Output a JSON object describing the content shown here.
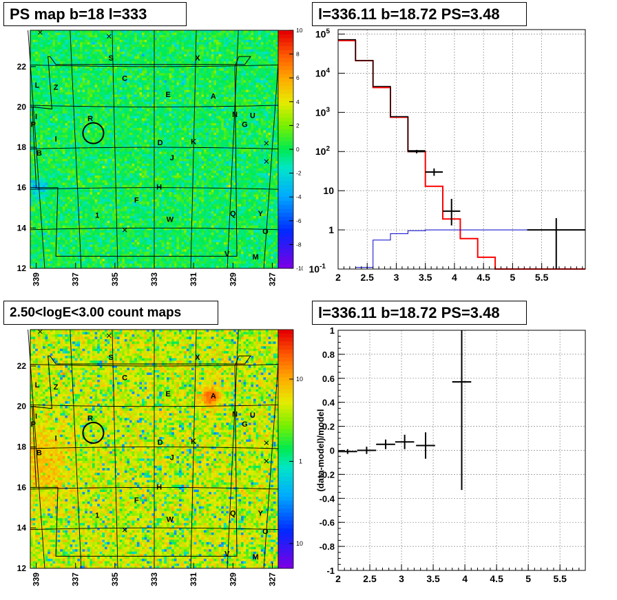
{
  "panels": {
    "ps_map": {
      "title": "PS map b=18 l=333",
      "xticks": [
        "339",
        "337",
        "335",
        "333",
        "331",
        "329",
        "327"
      ],
      "yticks": [
        "12",
        "14",
        "16",
        "18",
        "20",
        "22"
      ],
      "colorbar_ticks": [
        "10",
        "8",
        "6",
        "4",
        "2",
        "0",
        "-2",
        "-4",
        "-6",
        "-8",
        "-10"
      ]
    },
    "count_map": {
      "title": "2.50<logE<3.00 count maps",
      "xticks": [
        "339",
        "337",
        "335",
        "333",
        "331",
        "329",
        "327"
      ],
      "yticks": [
        "12",
        "14",
        "16",
        "18",
        "20",
        "22"
      ],
      "colorbar_ticks": [
        "10",
        "1",
        "10"
      ],
      "colorbar_tick_exp": "-1"
    },
    "spectrum": {
      "title": "l=336.11 b=18.72 PS=3.48"
    },
    "residual": {
      "title": "l=336.11 b=18.72 PS=3.48"
    }
  },
  "source_labels": [
    {
      "t": "S",
      "l": 335.2,
      "b": 22.3
    },
    {
      "t": "X",
      "l": 330.8,
      "b": 22.3
    },
    {
      "t": "C",
      "l": 334.5,
      "b": 21.3
    },
    {
      "t": "L",
      "l": 338.95,
      "b": 20.95
    },
    {
      "t": "Z",
      "l": 338.0,
      "b": 20.85
    },
    {
      "t": "E",
      "l": 332.3,
      "b": 20.5
    },
    {
      "t": "A",
      "l": 330.0,
      "b": 20.4
    },
    {
      "t": "N",
      "l": 328.9,
      "b": 19.5
    },
    {
      "t": "U",
      "l": 328.0,
      "b": 19.45
    },
    {
      "t": "I",
      "l": 339.0,
      "b": 19.4
    },
    {
      "t": "G",
      "l": 328.4,
      "b": 19.0
    },
    {
      "t": "P",
      "l": 339.15,
      "b": 19.0
    },
    {
      "t": "R",
      "l": 336.25,
      "b": 19.3
    },
    {
      "t": "I",
      "l": 338.0,
      "b": 18.3
    },
    {
      "t": "D",
      "l": 332.7,
      "b": 18.1
    },
    {
      "t": "K",
      "l": 331.0,
      "b": 18.15
    },
    {
      "t": "B",
      "l": 338.85,
      "b": 17.6
    },
    {
      "t": "J",
      "l": 332.1,
      "b": 17.35
    },
    {
      "t": "H",
      "l": 332.75,
      "b": 15.9
    },
    {
      "t": "F",
      "l": 333.9,
      "b": 15.25
    },
    {
      "t": "1",
      "l": 335.9,
      "b": 14.5
    },
    {
      "t": "W",
      "l": 332.2,
      "b": 14.3
    },
    {
      "t": "Q",
      "l": 329.0,
      "b": 14.6
    },
    {
      "t": "Y",
      "l": 327.6,
      "b": 14.6
    },
    {
      "t": "O",
      "l": 327.35,
      "b": 13.7
    },
    {
      "t": "V",
      "l": 329.3,
      "b": 12.6
    },
    {
      "t": "M",
      "l": 327.85,
      "b": 12.45
    }
  ],
  "chart_data": [
    {
      "type": "heatmap",
      "title": "PS map b=18 l=333",
      "xlabel": "",
      "ylabel": "",
      "xlim": [
        339.3,
        326.7
      ],
      "ylim": [
        12,
        23.8
      ],
      "zlim": [
        -10,
        10
      ],
      "palette": "rainbow",
      "features": [
        {
          "kind": "deficit",
          "l": 338.85,
          "b": 16.0,
          "value": -3.5
        },
        {
          "kind": "marked_circle",
          "l": 336.1,
          "b": 18.7
        }
      ]
    },
    {
      "type": "heatmap",
      "title": "2.50<logE<3.00 count maps",
      "xlabel": "",
      "ylabel": "",
      "xlim": [
        339.3,
        326.7
      ],
      "ylim": [
        12,
        23.8
      ],
      "zscale": "log",
      "zlim": [
        0.05,
        40
      ],
      "palette": "rainbow",
      "features": [
        {
          "kind": "excess",
          "l": 330.1,
          "b": 20.5,
          "value": 15
        },
        {
          "kind": "excess_region",
          "l": 338.9,
          "b": 17.3,
          "value": 10
        },
        {
          "kind": "marked_circle",
          "l": 336.1,
          "b": 18.7
        }
      ]
    },
    {
      "type": "line",
      "title": "l=336.11 b=18.72 PS=3.48",
      "xlabel": "",
      "ylabel": "",
      "xlim": [
        2,
        6.25
      ],
      "ylim": [
        0.1,
        130000
      ],
      "yscale": "log",
      "grid": true,
      "xticks": [
        "2",
        "2.5",
        "3",
        "3.5",
        "4",
        "4.5",
        "5",
        "5.5"
      ],
      "yticks": [
        {
          "v": 100000,
          "m": "10",
          "e": "5"
        },
        {
          "v": 10000,
          "m": "10",
          "e": "4"
        },
        {
          "v": 1000,
          "m": "10",
          "e": "3"
        },
        {
          "v": 100,
          "m": "10",
          "e": "2"
        },
        {
          "v": 10,
          "m": "10",
          "e": ""
        },
        {
          "v": 1,
          "m": "1",
          "e": ""
        },
        {
          "v": 0.1,
          "m": "10",
          "e": "-1"
        }
      ],
      "series": [
        {
          "style": "step",
          "color": "#ff0000",
          "edges": [
            2,
            2.3,
            2.6,
            2.9,
            3.2,
            3.5,
            3.8,
            4.1,
            4.4,
            4.7,
            5,
            5.3,
            5.6,
            5.9,
            6.25
          ],
          "values": [
            68000,
            21000,
            4300,
            750,
            100,
            13,
            1.9,
            0.6,
            0.2,
            0.1,
            0.1,
            0.1,
            0.1,
            0.1
          ]
        },
        {
          "style": "step",
          "color": "#000000",
          "edges": [
            2,
            2.3,
            2.6,
            2.9,
            3.2,
            3.5,
            3.8,
            4.1,
            4.4,
            4.7,
            5,
            5.3,
            5.6,
            5.9,
            6.25
          ],
          "values": [
            72000,
            21000,
            4600,
            780,
            105,
            null,
            null,
            null,
            null,
            null,
            null,
            null,
            null,
            null
          ]
        },
        {
          "style": "step",
          "color": "#0000cc",
          "edges": [
            2.3,
            2.6,
            2.9,
            3.2,
            3.5,
            3.8,
            4.1,
            4.4,
            4.7,
            5,
            5.3,
            5.6,
            5.9,
            6.25
          ],
          "values": [
            0.11,
            0.55,
            0.8,
            0.95,
            1,
            1,
            1,
            1,
            1,
            1,
            1,
            1,
            1
          ]
        },
        {
          "style": "errorbar",
          "color": "#000000",
          "points": [
            {
              "x": 3.35,
              "y": 100,
              "xerr": 0.15,
              "ylo": 90,
              "yhi": 110
            },
            {
              "x": 3.65,
              "y": 30,
              "xerr": 0.15,
              "ylo": 24,
              "yhi": 37
            },
            {
              "x": 3.95,
              "y": 3,
              "xerr": 0.15,
              "ylo": 1.3,
              "yhi": 6.2
            },
            {
              "x": 5.75,
              "y": 1,
              "xerr": 0.5,
              "ylo": 0.1,
              "yhi": 2
            }
          ]
        }
      ]
    },
    {
      "type": "scatter",
      "title": "l=336.11 b=18.72 PS=3.48",
      "xlabel": "",
      "ylabel": "(data-model)/model",
      "xlim": [
        2,
        5.9
      ],
      "ylim": [
        -1,
        1
      ],
      "grid": true,
      "xticks": [
        2,
        2.5,
        3,
        3.5,
        4,
        4.5,
        5,
        5.5
      ],
      "yticks": [
        1,
        0.8,
        0.6,
        0.4,
        0.2,
        0,
        -0.2,
        -0.4,
        -0.6,
        -0.8,
        -1
      ],
      "series": [
        {
          "name": "",
          "points": [
            {
              "x": 2.15,
              "y": -0.01,
              "xerr": 0.15,
              "yerr": 0.02
            },
            {
              "x": 2.45,
              "y": 0.0,
              "xerr": 0.15,
              "yerr": 0.03
            },
            {
              "x": 2.75,
              "y": 0.05,
              "xerr": 0.15,
              "yerr": 0.04
            },
            {
              "x": 3.05,
              "y": 0.07,
              "xerr": 0.15,
              "yerr": 0.06
            },
            {
              "x": 3.38,
              "y": 0.04,
              "xerr": 0.15,
              "yerr": 0.11
            },
            {
              "x": 3.95,
              "y": 0.57,
              "xerr": 0.15,
              "yerr": 0.9
            }
          ]
        }
      ]
    }
  ]
}
